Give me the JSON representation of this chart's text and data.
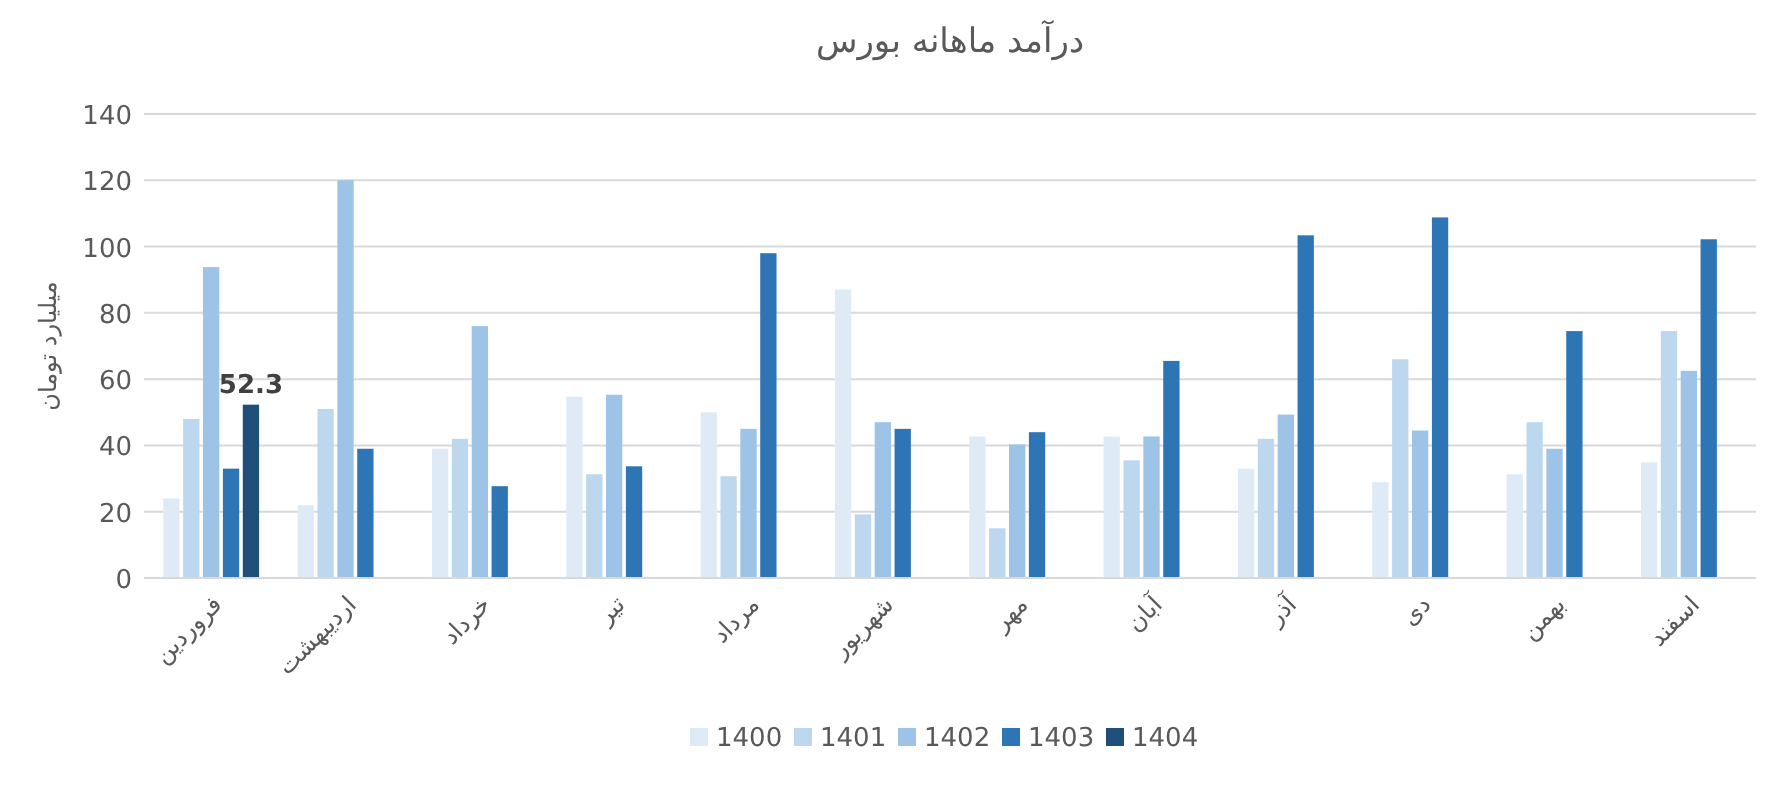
{
  "chart_data": {
    "type": "bar",
    "title": "درآمد ماهانه بورس",
    "ylabel": "میلیارد تومان",
    "categories": [
      "فروردین",
      "اردیبهشت",
      "خرداد",
      "تیر",
      "مرداد",
      "شهریور",
      "مهر",
      "آبان",
      "آذر",
      "دی",
      "بهمن",
      "اسفند"
    ],
    "series": [
      {
        "name": "1400",
        "color": "#deebf7",
        "values": [
          24,
          22,
          39,
          54.7,
          50,
          87,
          42.7,
          42.7,
          33,
          28.9,
          31.3,
          34.9
        ]
      },
      {
        "name": "1401",
        "color": "#bdd7ee",
        "values": [
          48,
          51,
          42,
          31.3,
          30.7,
          19.2,
          15,
          35.5,
          42,
          66,
          47,
          74.5
        ]
      },
      {
        "name": "1402",
        "color": "#9dc3e6",
        "values": [
          93.8,
          120,
          76,
          55.3,
          45,
          47,
          40.3,
          42.7,
          49.3,
          44.5,
          39,
          62.5
        ]
      },
      {
        "name": "1403",
        "color": "#2e75b6",
        "values": [
          33,
          39,
          27.7,
          33.7,
          98,
          45,
          44,
          65.5,
          103.4,
          108.8,
          74.5,
          102.2
        ]
      },
      {
        "name": "1404",
        "color": "#1f4e79",
        "values": [
          52.3,
          null,
          null,
          null,
          null,
          null,
          null,
          null,
          null,
          null,
          null,
          null
        ],
        "value_labels": [
          "52.3",
          null,
          null,
          null,
          null,
          null,
          null,
          null,
          null,
          null,
          null,
          null
        ]
      }
    ],
    "ylim": [
      0,
      140
    ],
    "yticks": [
      0,
      20,
      40,
      60,
      80,
      100,
      120,
      140
    ],
    "grid": "y",
    "legend": "bottom"
  }
}
